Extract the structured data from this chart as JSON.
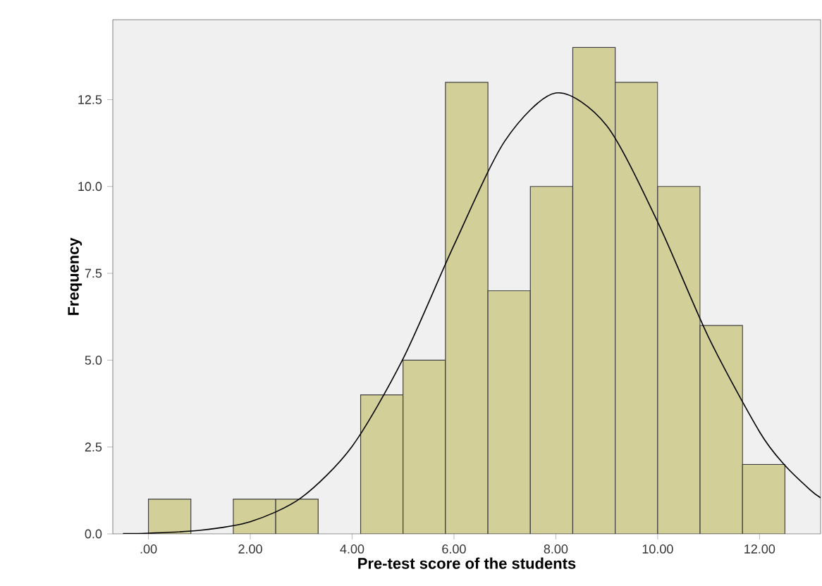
{
  "chart_data": {
    "type": "histogram",
    "xlabel": "Pre-test score of the students",
    "ylabel": "Frequency",
    "bins": [
      0,
      0.833,
      1.667,
      2.5,
      3.333,
      4.167,
      5,
      5.833,
      6.667,
      7.5,
      8.333,
      9.167,
      10,
      10.833,
      11.667,
      12.5
    ],
    "values": [
      1,
      0,
      1,
      1,
      0,
      4,
      5,
      13,
      7,
      10,
      14,
      13,
      10,
      6,
      2
    ],
    "color": "#d3cf98",
    "series": [
      {
        "type": "line",
        "color": "#000000",
        "x": [
          -0.5,
          0,
          1,
          2,
          3,
          4,
          5,
          6,
          7,
          8,
          9,
          10,
          11,
          12,
          12.5,
          13,
          13.2
        ],
        "values": [
          0.01,
          0.02,
          0.1,
          0.35,
          1.04,
          2.52,
          5.04,
          8.31,
          11.31,
          12.69,
          11.75,
          8.98,
          5.66,
          2.94,
          1.97,
          1.26,
          1.04
        ]
      }
    ],
    "xlim": [
      -0.7,
      13.2
    ],
    "ylim": [
      0,
      14.8
    ],
    "xticks": [
      {
        "value": 0,
        "label": ".00"
      },
      {
        "value": 2,
        "label": "2.00"
      },
      {
        "value": 4,
        "label": "4.00"
      },
      {
        "value": 6,
        "label": "6.00"
      },
      {
        "value": 8,
        "label": "8.00"
      },
      {
        "value": 10,
        "label": "10.00"
      },
      {
        "value": 12,
        "label": "12.00"
      }
    ],
    "yticks": [
      {
        "value": 0,
        "label": "0.0"
      },
      {
        "value": 2.5,
        "label": "2.5"
      },
      {
        "value": 5,
        "label": "5.0"
      },
      {
        "value": 7.5,
        "label": "7.5"
      },
      {
        "value": 10,
        "label": "10.0"
      },
      {
        "value": 12.5,
        "label": "12.5"
      }
    ]
  }
}
